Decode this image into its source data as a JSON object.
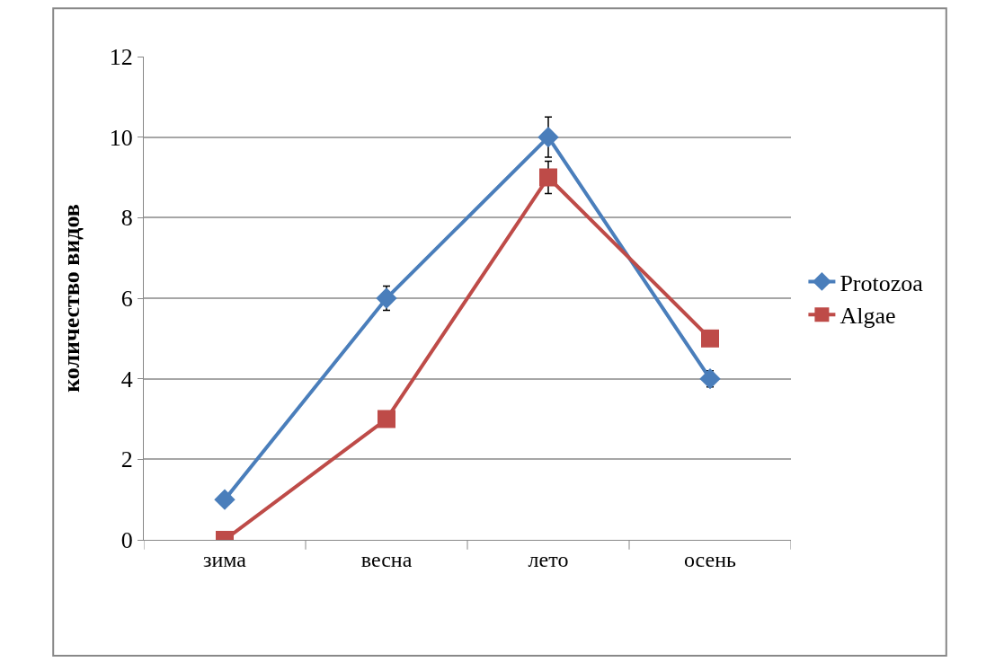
{
  "chart_data": {
    "type": "line",
    "ylabel": "количество видов",
    "categories": [
      "зима",
      "весна",
      "лето",
      "осень"
    ],
    "series": [
      {
        "name": "Protozoa",
        "color": "#4a7ebb",
        "values": [
          1,
          6,
          10,
          4
        ],
        "errors": [
          null,
          0.3,
          0.5,
          0.2
        ],
        "marker": "diamond"
      },
      {
        "name": "Algae",
        "color": "#be4b48",
        "values": [
          0,
          3,
          9,
          5
        ],
        "errors": [
          null,
          null,
          0.4,
          null
        ],
        "marker": "square"
      }
    ],
    "ylim": [
      0,
      12
    ],
    "yticks": [
      0,
      2,
      4,
      6,
      8,
      10,
      12
    ],
    "grid": "y",
    "legend": "right",
    "line_style": "solid"
  }
}
